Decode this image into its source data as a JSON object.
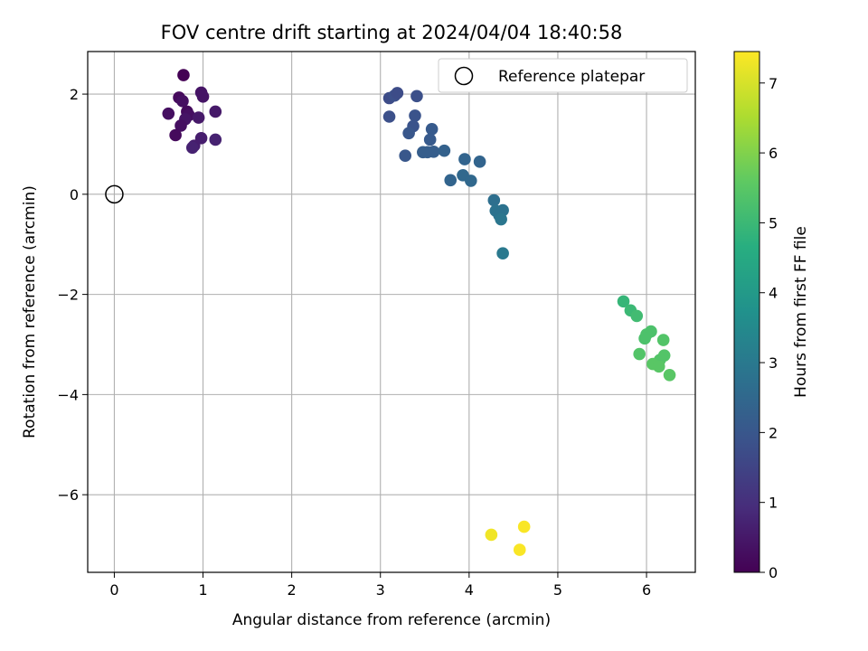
{
  "chart_data": {
    "type": "scatter",
    "title": "FOV centre drift starting at 2024/04/04 18:40:58",
    "xlabel": "Angular distance from reference (arcmin)",
    "ylabel": "Rotation from reference (arcmin)",
    "xlim": [
      -0.3,
      6.55
    ],
    "ylim": [
      -7.55,
      2.85
    ],
    "xticks": [
      0,
      1,
      2,
      3,
      4,
      5,
      6
    ],
    "yticks": [
      -6,
      -4,
      -2,
      0,
      2
    ],
    "grid": true,
    "legend": {
      "placement": "upper right",
      "entries": [
        "Reference platepar"
      ]
    },
    "reference_point": {
      "x": 0,
      "y": 0,
      "label": "Reference platepar"
    },
    "colorbar": {
      "label": "Hours from first FF file",
      "colormap": "viridis",
      "range": [
        0,
        7.45
      ],
      "ticks": [
        0,
        1,
        2,
        3,
        4,
        5,
        6,
        7
      ]
    },
    "points": [
      {
        "x": 0.78,
        "y": 2.38,
        "c": 0.0
      },
      {
        "x": 0.73,
        "y": 1.93,
        "c": 0.2
      },
      {
        "x": 0.77,
        "y": 1.86,
        "c": 0.3
      },
      {
        "x": 0.98,
        "y": 2.03,
        "c": 0.4
      },
      {
        "x": 1.0,
        "y": 1.95,
        "c": 0.4
      },
      {
        "x": 0.61,
        "y": 1.61,
        "c": 0.3
      },
      {
        "x": 0.82,
        "y": 1.65,
        "c": 0.2
      },
      {
        "x": 0.84,
        "y": 1.58,
        "c": 0.3
      },
      {
        "x": 1.14,
        "y": 1.65,
        "c": 0.5
      },
      {
        "x": 0.8,
        "y": 1.5,
        "c": 0.4
      },
      {
        "x": 0.95,
        "y": 1.53,
        "c": 0.5
      },
      {
        "x": 0.75,
        "y": 1.37,
        "c": 0.3
      },
      {
        "x": 0.69,
        "y": 1.18,
        "c": 0.2
      },
      {
        "x": 0.98,
        "y": 1.12,
        "c": 0.6
      },
      {
        "x": 1.14,
        "y": 1.09,
        "c": 0.7
      },
      {
        "x": 0.9,
        "y": 0.97,
        "c": 0.6
      },
      {
        "x": 0.88,
        "y": 0.93,
        "c": 0.7
      },
      {
        "x": 3.1,
        "y": 1.92,
        "c": 1.7
      },
      {
        "x": 3.16,
        "y": 1.97,
        "c": 1.8
      },
      {
        "x": 3.19,
        "y": 2.02,
        "c": 1.7
      },
      {
        "x": 3.41,
        "y": 1.96,
        "c": 1.8
      },
      {
        "x": 3.1,
        "y": 1.55,
        "c": 1.8
      },
      {
        "x": 3.39,
        "y": 1.57,
        "c": 1.9
      },
      {
        "x": 3.37,
        "y": 1.36,
        "c": 1.9
      },
      {
        "x": 3.32,
        "y": 1.22,
        "c": 2.0
      },
      {
        "x": 3.58,
        "y": 1.3,
        "c": 2.1
      },
      {
        "x": 3.56,
        "y": 1.09,
        "c": 2.1
      },
      {
        "x": 3.48,
        "y": 0.84,
        "c": 2.2
      },
      {
        "x": 3.53,
        "y": 0.84,
        "c": 2.2
      },
      {
        "x": 3.6,
        "y": 0.85,
        "c": 2.2
      },
      {
        "x": 3.72,
        "y": 0.87,
        "c": 2.3
      },
      {
        "x": 3.28,
        "y": 0.77,
        "c": 2.0
      },
      {
        "x": 3.95,
        "y": 0.7,
        "c": 2.4
      },
      {
        "x": 4.12,
        "y": 0.65,
        "c": 2.4
      },
      {
        "x": 3.93,
        "y": 0.38,
        "c": 2.5
      },
      {
        "x": 3.79,
        "y": 0.28,
        "c": 2.4
      },
      {
        "x": 4.02,
        "y": 0.27,
        "c": 2.5
      },
      {
        "x": 4.28,
        "y": -0.12,
        "c": 2.7
      },
      {
        "x": 4.3,
        "y": -0.33,
        "c": 2.8
      },
      {
        "x": 4.38,
        "y": -0.32,
        "c": 2.8
      },
      {
        "x": 4.34,
        "y": -0.42,
        "c": 2.8
      },
      {
        "x": 4.36,
        "y": -0.5,
        "c": 2.9
      },
      {
        "x": 4.38,
        "y": -1.18,
        "c": 3.0
      },
      {
        "x": 5.74,
        "y": -2.14,
        "c": 4.9
      },
      {
        "x": 5.82,
        "y": -2.32,
        "c": 5.0
      },
      {
        "x": 5.89,
        "y": -2.43,
        "c": 5.1
      },
      {
        "x": 6.05,
        "y": -2.74,
        "c": 5.3
      },
      {
        "x": 6.0,
        "y": -2.8,
        "c": 5.3
      },
      {
        "x": 5.98,
        "y": -2.88,
        "c": 5.3
      },
      {
        "x": 6.19,
        "y": -2.91,
        "c": 5.4
      },
      {
        "x": 6.2,
        "y": -3.22,
        "c": 5.4
      },
      {
        "x": 5.92,
        "y": -3.19,
        "c": 5.4
      },
      {
        "x": 6.15,
        "y": -3.31,
        "c": 5.4
      },
      {
        "x": 6.07,
        "y": -3.39,
        "c": 5.5
      },
      {
        "x": 6.14,
        "y": -3.44,
        "c": 5.5
      },
      {
        "x": 6.26,
        "y": -3.61,
        "c": 5.5
      },
      {
        "x": 4.25,
        "y": -6.8,
        "c": 7.3
      },
      {
        "x": 4.62,
        "y": -6.64,
        "c": 7.4
      },
      {
        "x": 4.57,
        "y": -7.1,
        "c": 7.4
      }
    ]
  }
}
